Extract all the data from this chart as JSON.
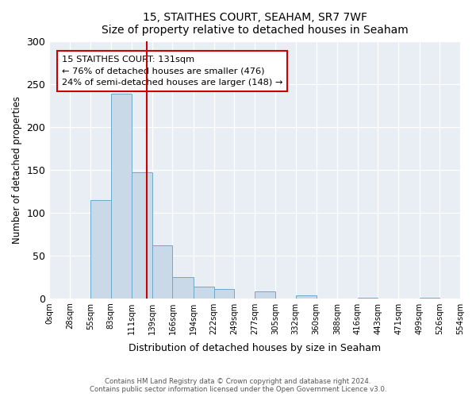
{
  "title": "15, STAITHES COURT, SEAHAM, SR7 7WF",
  "subtitle": "Size of property relative to detached houses in Seaham",
  "xlabel": "Distribution of detached houses by size in Seaham",
  "ylabel": "Number of detached properties",
  "bin_edges": [
    0,
    28,
    55,
    83,
    111,
    139,
    166,
    194,
    222,
    249,
    277,
    305,
    332,
    360,
    388,
    416,
    443,
    471,
    499,
    526,
    554
  ],
  "bin_labels": [
    "0sqm",
    "28sqm",
    "55sqm",
    "83sqm",
    "111sqm",
    "139sqm",
    "166sqm",
    "194sqm",
    "222sqm",
    "249sqm",
    "277sqm",
    "305sqm",
    "332sqm",
    "360sqm",
    "388sqm",
    "416sqm",
    "443sqm",
    "471sqm",
    "499sqm",
    "526sqm",
    "554sqm"
  ],
  "counts": [
    0,
    0,
    115,
    239,
    147,
    62,
    25,
    14,
    11,
    0,
    8,
    0,
    3,
    0,
    0,
    1,
    0,
    0,
    1,
    0
  ],
  "bar_color": "#c9d9e8",
  "bar_edgecolor": "#6fa8c8",
  "property_line_x": 131,
  "property_line_color": "#cc0000",
  "annotation_title": "15 STAITHES COURT: 131sqm",
  "annotation_line1": "← 76% of detached houses are smaller (476)",
  "annotation_line2": "24% of semi-detached houses are larger (148) →",
  "annotation_box_edgecolor": "#cc0000",
  "ylim": [
    0,
    300
  ],
  "yticks": [
    0,
    50,
    100,
    150,
    200,
    250,
    300
  ],
  "footer_line1": "Contains HM Land Registry data © Crown copyright and database right 2024.",
  "footer_line2": "Contains public sector information licensed under the Open Government Licence v3.0.",
  "ax_background_color": "#e8eef4",
  "fig_background_color": "#ffffff"
}
